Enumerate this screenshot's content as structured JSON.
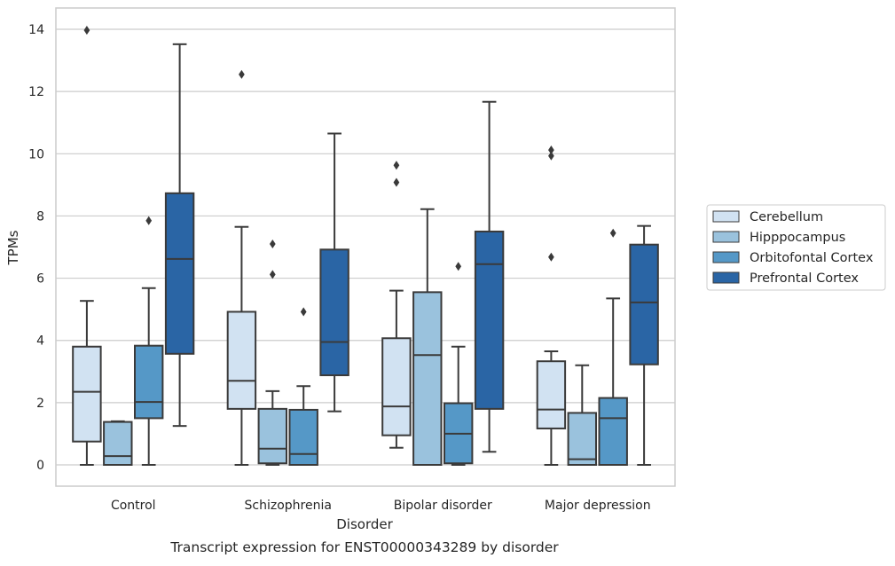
{
  "chart_data": {
    "type": "box",
    "caption": "Transcript expression for ENST00000343289 by disorder",
    "xlabel": "Disorder",
    "ylabel": "TPMs",
    "ylim": [
      -0.67,
      14.67
    ],
    "yticks": [
      "0",
      "2",
      "4",
      "6",
      "8",
      "10",
      "12",
      "14"
    ],
    "grid": "horizontal",
    "legend_position": "right",
    "categories": [
      "Control",
      "Schizophrenia",
      "Bipolar disorder",
      "Major depression"
    ],
    "series": [
      {
        "name": "Cerebellum",
        "color": "#d1e2f2",
        "boxes": [
          {
            "whisker_low": 0,
            "q1": 0.75,
            "median": 2.35,
            "q3": 3.8,
            "whisker_high": 5.27,
            "outliers": [
              13.97
            ]
          },
          {
            "whisker_low": 0,
            "q1": 1.8,
            "median": 2.7,
            "q3": 4.92,
            "whisker_high": 7.65,
            "outliers": [
              12.55
            ]
          },
          {
            "whisker_low": 0.55,
            "q1": 0.95,
            "median": 1.88,
            "q3": 4.07,
            "whisker_high": 5.6,
            "outliers": [
              9.63,
              9.08
            ]
          },
          {
            "whisker_low": 0,
            "q1": 1.17,
            "median": 1.78,
            "q3": 3.33,
            "whisker_high": 3.65,
            "outliers": [
              10.12,
              9.93,
              6.68
            ]
          }
        ]
      },
      {
        "name": "Hipppocampus",
        "color": "#9ac2dd",
        "boxes": [
          {
            "whisker_low": 0,
            "q1": 0,
            "median": 0.28,
            "q3": 1.38,
            "whisker_high": 1.4,
            "outliers": []
          },
          {
            "whisker_low": 0,
            "q1": 0.05,
            "median": 0.52,
            "q3": 1.8,
            "whisker_high": 2.37,
            "outliers": [
              7.1,
              6.12
            ]
          },
          {
            "whisker_low": 0,
            "q1": 0,
            "median": 3.53,
            "q3": 5.55,
            "whisker_high": 8.22,
            "outliers": []
          },
          {
            "whisker_low": 0,
            "q1": 0,
            "median": 0.18,
            "q3": 1.67,
            "whisker_high": 3.2,
            "outliers": []
          }
        ]
      },
      {
        "name": "Orbitofontal Cortex",
        "color": "#5598c7",
        "boxes": [
          {
            "whisker_low": 0,
            "q1": 1.5,
            "median": 2.02,
            "q3": 3.83,
            "whisker_high": 5.68,
            "outliers": [
              7.85
            ]
          },
          {
            "whisker_low": 0,
            "q1": 0,
            "median": 0.35,
            "q3": 1.77,
            "whisker_high": 2.53,
            "outliers": [
              4.92
            ]
          },
          {
            "whisker_low": 0,
            "q1": 0.05,
            "median": 1.0,
            "q3": 1.98,
            "whisker_high": 3.8,
            "outliers": [
              6.38
            ]
          },
          {
            "whisker_low": 0,
            "q1": 0,
            "median": 1.5,
            "q3": 2.15,
            "whisker_high": 5.35,
            "outliers": [
              7.45
            ]
          }
        ]
      },
      {
        "name": "Prefrontal Cortex",
        "color": "#2a65a5",
        "boxes": [
          {
            "whisker_low": 1.25,
            "q1": 3.57,
            "median": 6.62,
            "q3": 8.73,
            "whisker_high": 13.52,
            "outliers": []
          },
          {
            "whisker_low": 1.72,
            "q1": 2.88,
            "median": 3.95,
            "q3": 6.92,
            "whisker_high": 10.65,
            "outliers": []
          },
          {
            "whisker_low": 0.42,
            "q1": 1.8,
            "median": 6.45,
            "q3": 7.5,
            "whisker_high": 11.67,
            "outliers": []
          },
          {
            "whisker_low": 0,
            "q1": 3.23,
            "median": 5.22,
            "q3": 7.08,
            "whisker_high": 7.68,
            "outliers": []
          }
        ]
      }
    ]
  }
}
